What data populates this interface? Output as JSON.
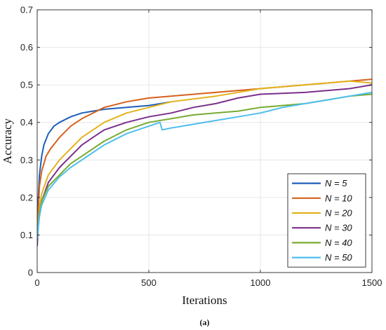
{
  "chart_data": {
    "type": "line",
    "xlabel": "Iterations",
    "ylabel": "Accuracy",
    "xlim": [
      0,
      1500
    ],
    "ylim": [
      0,
      0.7
    ],
    "xticks": [
      "0",
      "500",
      "1000",
      "1500"
    ],
    "yticks": [
      "0",
      "0.1",
      "0.2",
      "0.3",
      "0.4",
      "0.5",
      "0.6",
      "0.7"
    ],
    "grid": true,
    "legend_position": "bottom-right",
    "caption": "(a)",
    "series": [
      {
        "name": "N = 5",
        "color": "#1f5fb8",
        "x": [
          0,
          5,
          10,
          20,
          30,
          50,
          75,
          100,
          150,
          200,
          250,
          300,
          400,
          500,
          600
        ],
        "y": [
          0.1,
          0.2,
          0.26,
          0.31,
          0.34,
          0.37,
          0.39,
          0.4,
          0.415,
          0.425,
          0.43,
          0.435,
          0.44,
          0.445,
          0.455
        ]
      },
      {
        "name": "N = 10",
        "color": "#d5601c",
        "x": [
          0,
          10,
          20,
          40,
          60,
          100,
          150,
          200,
          300,
          400,
          500,
          600,
          800,
          1000,
          1200,
          1400,
          1500
        ],
        "y": [
          0.1,
          0.23,
          0.27,
          0.31,
          0.33,
          0.36,
          0.39,
          0.41,
          0.44,
          0.455,
          0.465,
          0.47,
          0.48,
          0.49,
          0.5,
          0.51,
          0.515
        ]
      },
      {
        "name": "N = 20",
        "color": "#e2b21e",
        "x": [
          0,
          10,
          20,
          50,
          100,
          150,
          200,
          300,
          400,
          500,
          600,
          800,
          1000,
          1200,
          1400,
          1500
        ],
        "y": [
          0.1,
          0.17,
          0.21,
          0.26,
          0.3,
          0.33,
          0.36,
          0.4,
          0.425,
          0.44,
          0.455,
          0.47,
          0.49,
          0.5,
          0.51,
          0.505
        ]
      },
      {
        "name": "N = 30",
        "color": "#7b2f8c",
        "x": [
          0,
          5,
          20,
          50,
          100,
          150,
          200,
          250,
          300,
          400,
          500,
          600,
          700,
          800,
          900,
          1000,
          1200,
          1400,
          1500
        ],
        "y": [
          0.07,
          0.13,
          0.19,
          0.24,
          0.28,
          0.31,
          0.34,
          0.36,
          0.38,
          0.4,
          0.415,
          0.425,
          0.44,
          0.45,
          0.465,
          0.475,
          0.48,
          0.49,
          0.5
        ]
      },
      {
        "name": "N = 40",
        "color": "#78ab30",
        "x": [
          0,
          10,
          20,
          50,
          100,
          150,
          200,
          300,
          400,
          500,
          600,
          700,
          800,
          900,
          1000,
          1100,
          1200,
          1300,
          1400,
          1500
        ],
        "y": [
          0.1,
          0.16,
          0.19,
          0.23,
          0.26,
          0.29,
          0.31,
          0.35,
          0.38,
          0.4,
          0.41,
          0.42,
          0.425,
          0.43,
          0.44,
          0.445,
          0.45,
          0.46,
          0.47,
          0.475
        ]
      },
      {
        "name": "N = 50",
        "color": "#4dbeee",
        "x": [
          0,
          10,
          20,
          50,
          100,
          150,
          200,
          300,
          400,
          500,
          550,
          560,
          600,
          700,
          800,
          900,
          1000,
          1100,
          1200,
          1300,
          1400,
          1500
        ],
        "y": [
          0.09,
          0.15,
          0.18,
          0.22,
          0.255,
          0.28,
          0.3,
          0.34,
          0.37,
          0.39,
          0.4,
          0.38,
          0.385,
          0.395,
          0.405,
          0.415,
          0.425,
          0.44,
          0.45,
          0.46,
          0.47,
          0.48
        ]
      }
    ]
  }
}
